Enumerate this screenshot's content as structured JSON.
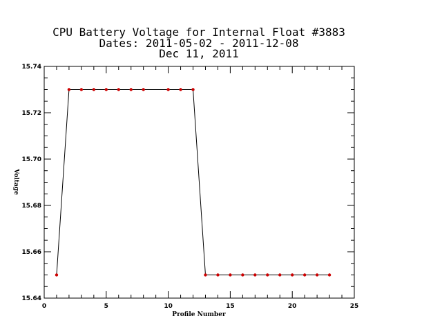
{
  "chart_data": {
    "type": "line",
    "title_lines": [
      "CPU Battery Voltage for Internal Float #3883",
      "Dates:  2011-05-02 -  2011-12-08",
      "Dec 11, 2011"
    ],
    "xlabel": "Profile Number",
    "ylabel": "Voltage",
    "xlim": [
      0,
      25
    ],
    "ylim": [
      15.64,
      15.74
    ],
    "x_ticks": [
      0,
      5,
      10,
      15,
      20,
      25
    ],
    "x_tick_labels": [
      "0",
      "5",
      "10",
      "15",
      "20",
      "25"
    ],
    "y_ticks": [
      15.64,
      15.66,
      15.68,
      15.7,
      15.72,
      15.74
    ],
    "y_tick_labels": [
      "15.64",
      "15.66",
      "15.68",
      "15.70",
      "15.72",
      "15.74"
    ],
    "grid": false,
    "line_color": "#000000",
    "marker_color": "#cc0000",
    "series": [
      {
        "x": [
          1,
          2,
          3,
          4,
          5,
          6,
          7,
          8,
          10,
          11,
          12,
          13,
          14,
          15,
          16,
          17,
          18,
          19,
          20,
          21,
          22,
          23
        ],
        "y": [
          15.65,
          15.73,
          15.73,
          15.73,
          15.73,
          15.73,
          15.73,
          15.73,
          15.73,
          15.73,
          15.73,
          15.65,
          15.65,
          15.65,
          15.65,
          15.65,
          15.65,
          15.65,
          15.65,
          15.65,
          15.65,
          15.65
        ]
      }
    ]
  }
}
